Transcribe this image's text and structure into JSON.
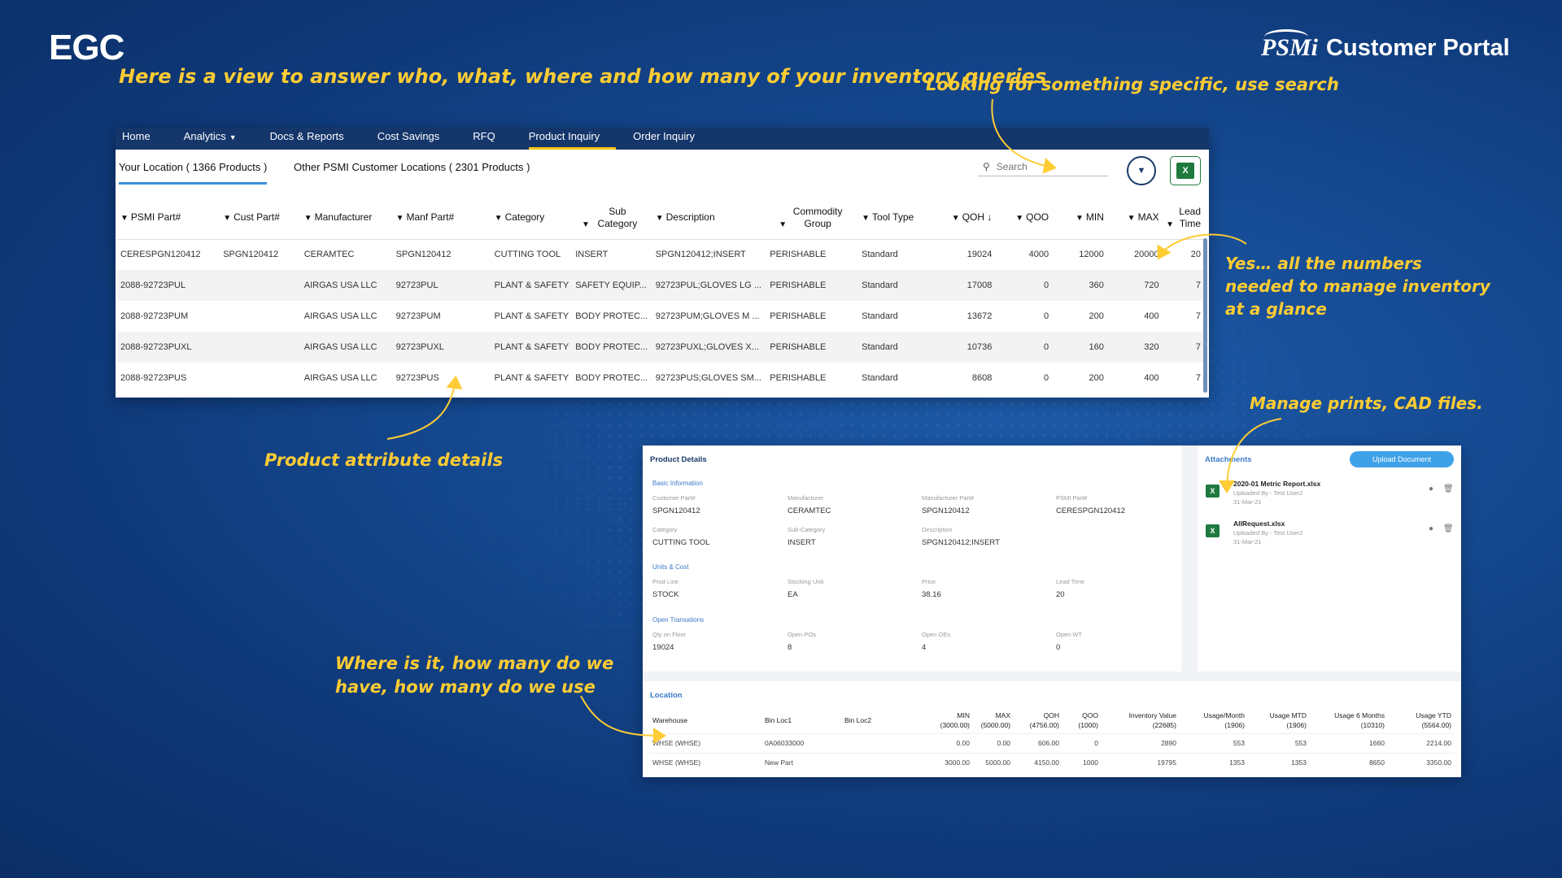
{
  "brand": {
    "left": "EGC",
    "logo": "PSMi",
    "portal": "Customer Portal"
  },
  "annotations": {
    "headline": "Here is a view to answer who, what, where and how many of your inventory queries",
    "search": "Looking for something specific, use search",
    "numbers": "Yes… all the numbers needed to manage inventory at a glance",
    "prints": "Manage prints, CAD files.",
    "product": "Product attribute details",
    "where": "Where is it, how many do we have, how many do we use"
  },
  "nav": {
    "items": [
      {
        "label": "Home"
      },
      {
        "label": "Analytics"
      },
      {
        "label": "Docs & Reports"
      },
      {
        "label": "Cost Savings"
      },
      {
        "label": "RFQ"
      },
      {
        "label": "Product Inquiry"
      },
      {
        "label": "Order Inquiry"
      }
    ]
  },
  "tabs": {
    "your_location": "Your Location ( 1366 Products )",
    "other_locations": "Other PSMI Customer Locations ( 2301 Products )"
  },
  "search": {
    "placeholder": "Search"
  },
  "table": {
    "columns": [
      "PSMI Part#",
      "Cust Part#",
      "Manufacturer",
      "Manf Part#",
      "Category",
      "Sub Category",
      "Description",
      "Commodity Group",
      "Tool Type",
      "QOH",
      "QOO",
      "MIN",
      "MAX",
      "Lead Time"
    ],
    "sort_indicator": "↓",
    "rows": [
      [
        "CERESPGN120412",
        "SPGN120412",
        "CERAMTEC",
        "SPGN120412",
        "CUTTING TOOL",
        "INSERT",
        "SPGN120412;INSERT",
        "PERISHABLE",
        "Standard",
        "19024",
        "4000",
        "12000",
        "20000",
        "20"
      ],
      [
        "2088-92723PUL",
        "",
        "AIRGAS USA LLC",
        "92723PUL",
        "PLANT & SAFETY",
        "SAFETY EQUIP...",
        "92723PUL;GLOVES LG ...",
        "PERISHABLE",
        "Standard",
        "17008",
        "0",
        "360",
        "720",
        "7"
      ],
      [
        "2088-92723PUM",
        "",
        "AIRGAS USA LLC",
        "92723PUM",
        "PLANT & SAFETY",
        "BODY PROTEC...",
        "92723PUM;GLOVES M ...",
        "PERISHABLE",
        "Standard",
        "13672",
        "0",
        "200",
        "400",
        "7"
      ],
      [
        "2088-92723PUXL",
        "",
        "AIRGAS USA LLC",
        "92723PUXL",
        "PLANT & SAFETY",
        "BODY PROTEC...",
        "92723PUXL;GLOVES X...",
        "PERISHABLE",
        "Standard",
        "10736",
        "0",
        "160",
        "320",
        "7"
      ],
      [
        "2088-92723PUS",
        "",
        "AIRGAS USA LLC",
        "92723PUS",
        "PLANT & SAFETY",
        "BODY PROTEC...",
        "92723PUS;GLOVES SM...",
        "PERISHABLE",
        "Standard",
        "8608",
        "0",
        "200",
        "400",
        "7"
      ]
    ]
  },
  "product_details": {
    "title": "Product Details",
    "basic_title": "Basic Information",
    "customer_part_label": "Customer Part#",
    "customer_part": "SPGN120412",
    "manufacturer_label": "Manufacturer",
    "manufacturer": "CERAMTEC",
    "manf_part_label": "Manufacturer Part#",
    "manf_part": "SPGN120412",
    "psmi_part_label": "PSMI Part#",
    "psmi_part": "CERESPGN120412",
    "category_label": "Category",
    "category": "CUTTING TOOL",
    "sub_category_label": "Sub-Category",
    "sub_category": "INSERT",
    "description_label": "Description",
    "description": "SPGN120412;INSERT",
    "units_title": "Units & Cost",
    "prod_line_label": "Prod Line",
    "prod_line": "STOCK",
    "stocking_unit_label": "Stocking Unit",
    "stocking_unit": "EA",
    "price_label": "Price",
    "price": "38.16",
    "lead_time_label": "Lead Time",
    "lead_time": "20",
    "open_title": "Open Transations",
    "qty_floor_label": "Qty on Floor",
    "qty_floor": "19024",
    "open_pos_label": "Open POs",
    "open_pos": "8",
    "open_oes_label": "Open OEs",
    "open_oes": "4",
    "open_wt_label": "Open WT",
    "open_wt": "0"
  },
  "attachments": {
    "title": "Attachments",
    "upload_label": "Upload Document",
    "files": [
      {
        "name": "2020-01 Metric Report.xlsx",
        "by": "Uploaded By - Test User2",
        "date": "31-Mar-21"
      },
      {
        "name": "AllRequest.xlsx",
        "by": "Uploaded By - Test User2",
        "date": "31-Mar-21"
      }
    ]
  },
  "location": {
    "title": "Location",
    "columns": [
      [
        "Warehouse",
        ""
      ],
      [
        "Bin Loc1",
        ""
      ],
      [
        "Bin Loc2",
        ""
      ],
      [
        "MIN",
        "(3000.00)"
      ],
      [
        "MAX",
        "(5000.00)"
      ],
      [
        "QOH",
        "(4756.00)"
      ],
      [
        "QOO",
        "(1000)"
      ],
      [
        "Inventory Value",
        "(22685)"
      ],
      [
        "Usage/Month",
        "(1906)"
      ],
      [
        "Usage MTD",
        "(1906)"
      ],
      [
        "Usage 6 Months",
        "(10310)"
      ],
      [
        "Usage YTD",
        "(5564.00)"
      ]
    ],
    "rows": [
      [
        "WHSE (WHSE)",
        "0A06033000",
        "",
        "0.00",
        "0.00",
        "606.00",
        "0",
        "2890",
        "553",
        "553",
        "1660",
        "2214.00"
      ],
      [
        "WHSE (WHSE)",
        "New Part",
        "",
        "3000.00",
        "5000.00",
        "4150.00",
        "1000",
        "19795",
        "1353",
        "1353",
        "8650",
        "3350.00"
      ]
    ]
  },
  "colors": {
    "accent": "#ffcc33",
    "nav": "#14366b",
    "link": "#3a7ac8",
    "upload": "#3fa2e8"
  }
}
